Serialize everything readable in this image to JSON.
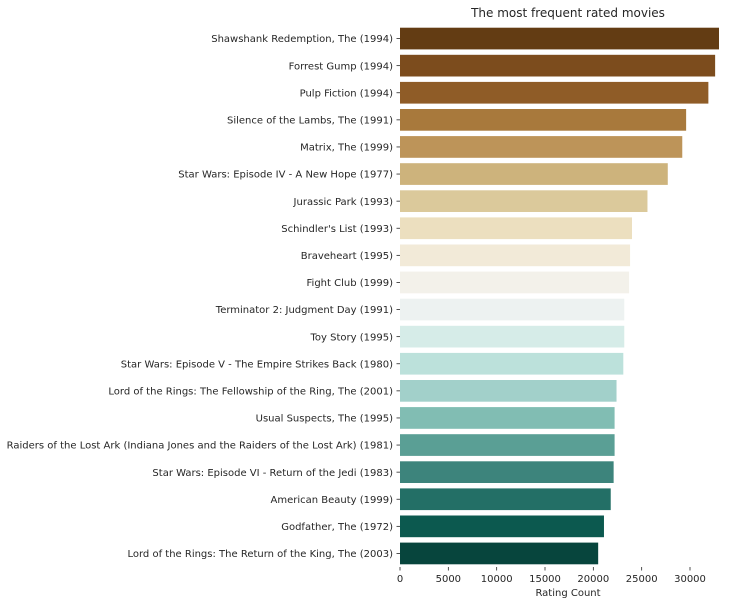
{
  "chart_data": {
    "type": "bar",
    "orientation": "horizontal",
    "title": "The most frequent rated movies",
    "xlabel": "Rating Count",
    "ylabel": "",
    "xlim": [
      0,
      33000
    ],
    "xticks": [
      0,
      5000,
      10000,
      15000,
      20000,
      25000,
      30000
    ],
    "grid": false,
    "categories": [
      "Shawshank Redemption, The (1994)",
      "Forrest Gump (1994)",
      "Pulp Fiction (1994)",
      "Silence of the Lambs, The (1991)",
      "Matrix, The (1999)",
      "Star Wars: Episode IV - A New Hope (1977)",
      "Jurassic Park (1993)",
      "Schindler's List (1993)",
      "Braveheart (1995)",
      "Fight Club (1999)",
      "Terminator 2: Judgment Day (1991)",
      "Toy Story (1995)",
      "Star Wars: Episode V - The Empire Strikes Back (1980)",
      "Lord of the Rings: The Fellowship of the Ring, The (2001)",
      "Usual Suspects, The (1995)",
      "Raiders of the Lost Ark (Indiana Jones and the Raiders of the Lost Ark) (1981)",
      "Star Wars: Episode VI - Return of the Jedi (1983)",
      "American Beauty (1999)",
      "Godfather, The (1972)",
      "Lord of the Rings: The Return of the King, The (2003)"
    ],
    "values": [
      33000,
      32600,
      31900,
      29600,
      29200,
      27700,
      25600,
      24000,
      23800,
      23700,
      23200,
      23200,
      23100,
      22400,
      22200,
      22200,
      22100,
      21800,
      21100,
      20500
    ],
    "colors": [
      "#633c13",
      "#7c4c1d",
      "#8f5c27",
      "#a8793c",
      "#bd9459",
      "#cdb37c",
      "#dbc99b",
      "#ecdfbf",
      "#f2ead8",
      "#f3f1ea",
      "#edf2f1",
      "#d6ece8",
      "#bce1db",
      "#a2d0ca",
      "#81bdb3",
      "#5a9f95",
      "#3d847c",
      "#236f66",
      "#0c594f",
      "#07453d"
    ]
  }
}
